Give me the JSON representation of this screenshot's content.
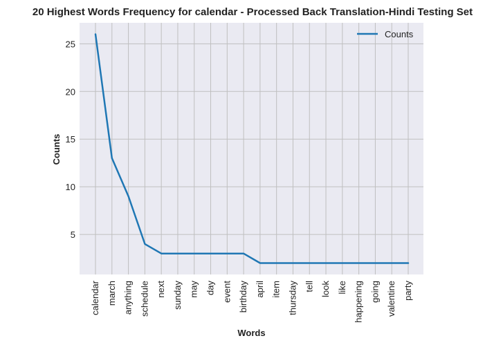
{
  "chart_data": {
    "type": "line",
    "title": "20 Highest Words Frequency for calendar - Processed Back Translation-Hindi Testing Set",
    "xlabel": "Words",
    "ylabel": "Counts",
    "categories": [
      "calendar",
      "march",
      "anything",
      "schedule",
      "next",
      "sunday",
      "may",
      "day",
      "event",
      "birthday",
      "april",
      "item",
      "thursday",
      "tell",
      "look",
      "like",
      "happening",
      "going",
      "valentine",
      "party"
    ],
    "series": [
      {
        "name": "Counts",
        "values": [
          26,
          13,
          9,
          4,
          3,
          3,
          3,
          3,
          3,
          3,
          2,
          2,
          2,
          2,
          2,
          2,
          2,
          2,
          2,
          2
        ],
        "color": "#1f77b4"
      }
    ],
    "ylim": [
      0.8,
      27.2
    ],
    "yticks": [
      5,
      10,
      15,
      20,
      25
    ],
    "grid": true,
    "legend_position": "top-right",
    "plot_background": "#eaeaf2",
    "grid_color": "#bfbfbf"
  }
}
